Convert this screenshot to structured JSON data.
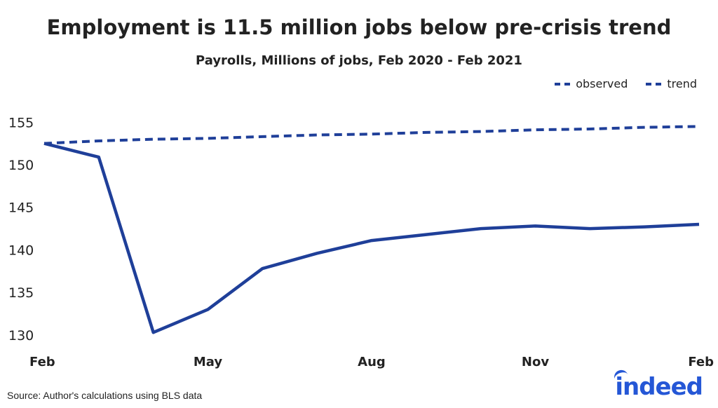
{
  "chart_data": {
    "type": "line",
    "title": "Employment is 11.5 million jobs below pre-crisis trend",
    "subtitle": "Payrolls, Millions of jobs, Feb 2020 - Feb 2021",
    "x": [
      "Feb 2020",
      "Mar 2020",
      "Apr 2020",
      "May 2020",
      "Jun 2020",
      "Jul 2020",
      "Aug 2020",
      "Sep 2020",
      "Oct 2020",
      "Nov 2020",
      "Dec 2020",
      "Jan 2021",
      "Feb 2021"
    ],
    "x_tick_labels": [
      "Feb",
      "May",
      "Aug",
      "Nov",
      "Feb"
    ],
    "x_tick_indices": [
      0,
      3,
      6,
      9,
      12
    ],
    "y_ticks": [
      130,
      135,
      140,
      145,
      150,
      155
    ],
    "ylim": [
      129,
      157
    ],
    "series": [
      {
        "name": "observed",
        "style": "solid",
        "color": "#1f3f99",
        "values": [
          152.5,
          150.9,
          130.3,
          133.0,
          137.8,
          139.6,
          141.1,
          141.8,
          142.5,
          142.8,
          142.5,
          142.7,
          143.0
        ]
      },
      {
        "name": "trend",
        "style": "dashed",
        "color": "#1f3f99",
        "values": [
          152.5,
          152.8,
          153.0,
          153.1,
          153.3,
          153.5,
          153.6,
          153.8,
          153.9,
          154.1,
          154.2,
          154.4,
          154.5
        ]
      }
    ],
    "legend_position": "top-right",
    "grid": false
  },
  "source": "Source: Author's calculations using BLS data",
  "logo_text": "indeed"
}
